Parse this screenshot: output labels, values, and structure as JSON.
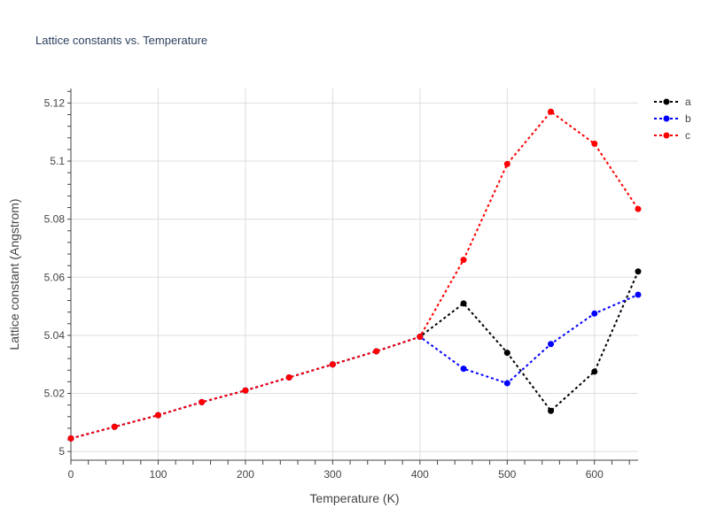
{
  "chart_data": {
    "type": "line",
    "title": "Lattice constants vs. Temperature",
    "xlabel": "Temperature (K)",
    "ylabel": "Lattice constant (Angstrom)",
    "xlim": [
      0,
      650
    ],
    "ylim": [
      4.997,
      5.125
    ],
    "x_ticks": [
      0,
      100,
      200,
      300,
      400,
      500,
      600
    ],
    "y_ticks": [
      5,
      5.02,
      5.04,
      5.06,
      5.08,
      5.1,
      5.12
    ],
    "grid": true,
    "legend_position": "top-right",
    "x": [
      0,
      50,
      100,
      150,
      200,
      250,
      300,
      350,
      400,
      450,
      500,
      550,
      600,
      650
    ],
    "series": [
      {
        "name": "a",
        "color": "#000000",
        "values": [
          5.0045,
          5.0085,
          5.0125,
          5.017,
          5.021,
          5.0255,
          5.03,
          5.0345,
          5.0395,
          5.051,
          5.034,
          5.014,
          5.0275,
          5.062
        ]
      },
      {
        "name": "b",
        "color": "#0000ff",
        "values": [
          5.0045,
          5.0085,
          5.0125,
          5.017,
          5.021,
          5.0255,
          5.03,
          5.0345,
          5.0395,
          5.0285,
          5.0235,
          5.037,
          5.0475,
          5.054
        ]
      },
      {
        "name": "c",
        "color": "#ff0000",
        "values": [
          5.0045,
          5.0085,
          5.0125,
          5.017,
          5.021,
          5.0255,
          5.03,
          5.0345,
          5.0395,
          5.066,
          5.099,
          5.117,
          5.106,
          5.0835
        ]
      }
    ]
  }
}
